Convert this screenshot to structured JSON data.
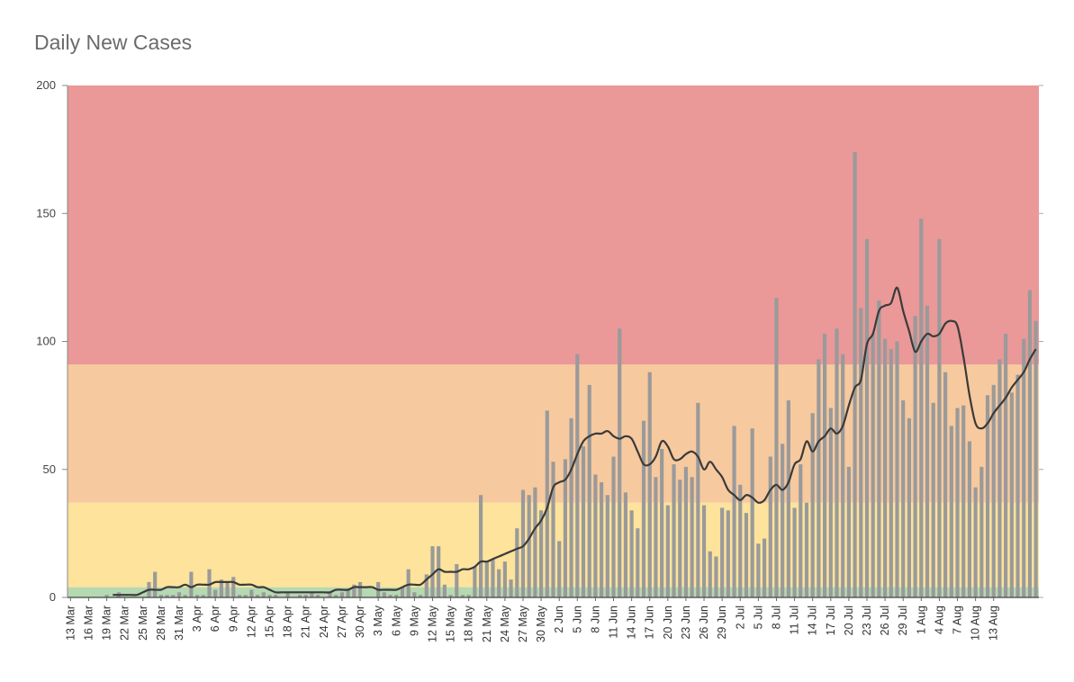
{
  "chart_data": {
    "type": "bar",
    "title": "Daily New Cases",
    "ylim": [
      0,
      200
    ],
    "y_ticks": [
      "0",
      "50",
      "100",
      "150",
      "200"
    ],
    "x_tick_labels": [
      "13 Mar",
      "16 Mar",
      "19 Mar",
      "22 Mar",
      "25 Mar",
      "28 Mar",
      "31 Mar",
      "3 Apr",
      "6 Apr",
      "9 Apr",
      "12 Apr",
      "15 Apr",
      "18 Apr",
      "21 Apr",
      "24 Apr",
      "27 Apr",
      "30 Apr",
      "3 May",
      "6 May",
      "9 May",
      "12 May",
      "15 May",
      "18 May",
      "21 May",
      "24 May",
      "27 May",
      "30 May",
      "2 Jun",
      "5 Jun",
      "8 Jun",
      "11 Jun",
      "14 Jun",
      "17 Jun",
      "20 Jun",
      "23 Jun",
      "26 Jun",
      "29 Jun",
      "2 Jul",
      "5 Jul",
      "8 Jul",
      "11 Jul",
      "14 Jul",
      "17 Jul",
      "20 Jul",
      "23 Jul",
      "26 Jul",
      "29 Jul",
      "1 Aug",
      "4 Aug",
      "7 Aug",
      "10 Aug",
      "13 Aug"
    ],
    "bands": [
      {
        "from": 0,
        "to": 4,
        "color": "#b5d9b1"
      },
      {
        "from": 4,
        "to": 37,
        "color": "#fde39b"
      },
      {
        "from": 37,
        "to": 91,
        "color": "#f7c99e"
      },
      {
        "from": 91,
        "to": 200,
        "color": "#ea9898"
      }
    ],
    "bar_color": "#9a9a9a",
    "line_color": "#3a3a3a",
    "start_date": "13 Mar",
    "series": [
      {
        "type": "bar",
        "values": [
          0,
          0,
          0,
          0,
          0,
          0,
          1,
          0,
          2,
          0,
          0,
          0,
          0,
          6,
          10,
          1,
          1,
          1,
          2,
          1,
          10,
          1,
          1,
          11,
          3,
          7,
          6,
          8,
          1,
          1,
          3,
          1,
          2,
          1,
          1,
          0,
          2,
          0,
          1,
          1,
          2,
          1,
          0,
          2,
          1,
          2,
          3,
          5,
          6,
          0,
          0,
          6,
          2,
          1,
          1,
          4,
          11,
          2,
          1,
          9,
          20,
          20,
          5,
          1,
          13,
          1,
          1,
          12,
          40,
          14,
          15,
          11,
          14,
          7,
          27,
          42,
          40,
          43,
          34,
          73,
          53,
          22,
          54,
          70,
          95,
          59,
          83,
          48,
          45,
          40,
          55,
          105,
          41,
          34,
          27,
          69,
          88,
          47,
          58,
          36,
          52,
          46,
          51,
          47,
          76,
          36,
          18,
          16,
          35,
          34,
          67,
          44,
          33,
          66,
          21,
          23,
          55,
          117,
          60,
          77,
          35,
          52,
          37,
          72,
          93,
          103,
          74,
          105,
          95,
          51,
          174,
          113,
          140,
          103,
          116,
          101,
          97,
          100,
          77,
          70,
          110,
          148,
          114,
          76,
          140,
          88,
          67,
          74,
          75,
          61,
          43,
          51,
          79,
          83,
          93,
          103,
          80,
          87,
          101,
          120,
          108
        ]
      },
      {
        "type": "line",
        "values": [
          null,
          null,
          null,
          null,
          null,
          null,
          null,
          1,
          1,
          1,
          1,
          1,
          2,
          3,
          3,
          3,
          4,
          4,
          4,
          5,
          4,
          5,
          5,
          5,
          6,
          6,
          6,
          6,
          5,
          5,
          5,
          4,
          4,
          3,
          2,
          2,
          2,
          2,
          2,
          2,
          2,
          2,
          2,
          2,
          3,
          3,
          3,
          4,
          4,
          4,
          4,
          3,
          3,
          3,
          3,
          4,
          5,
          5,
          5,
          7,
          9,
          11,
          10,
          10,
          10,
          11,
          11,
          12,
          14,
          14,
          15,
          16,
          17,
          18,
          19,
          20,
          23,
          27,
          30,
          35,
          43,
          45,
          46,
          50,
          56,
          61,
          63,
          64,
          64,
          65,
          63,
          62,
          63,
          62,
          57,
          52,
          52,
          55,
          61,
          59,
          54,
          54,
          56,
          57,
          55,
          50,
          53,
          50,
          47,
          42,
          40,
          38,
          40,
          39,
          37,
          38,
          42,
          44,
          42,
          45,
          52,
          54,
          61,
          57,
          61,
          63,
          66,
          64,
          67,
          75,
          82,
          85,
          99,
          103,
          112,
          114,
          115,
          121,
          112,
          104,
          96,
          100,
          103,
          102,
          103,
          107,
          108,
          106,
          94,
          79,
          68,
          66,
          68,
          72,
          75,
          78,
          82,
          85,
          88,
          93,
          97
        ]
      }
    ]
  }
}
